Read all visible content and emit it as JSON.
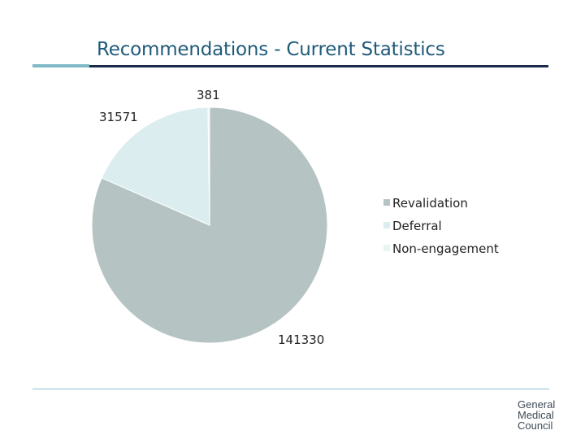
{
  "header": {
    "title": "Recommendations - Current Statistics"
  },
  "chart_data": {
    "type": "pie",
    "categories": [
      "Revalidation",
      "Deferral",
      "Non-engagement"
    ],
    "values": [
      141330,
      31571,
      381
    ],
    "data_labels": [
      "141330",
      "31571",
      "381"
    ],
    "colors": [
      "#b5c3c3",
      "#dbedef",
      "#e9f4f4"
    ],
    "legend_position": "right",
    "title": ""
  },
  "logo": {
    "lines": [
      "General",
      "Medical",
      "Council"
    ]
  }
}
